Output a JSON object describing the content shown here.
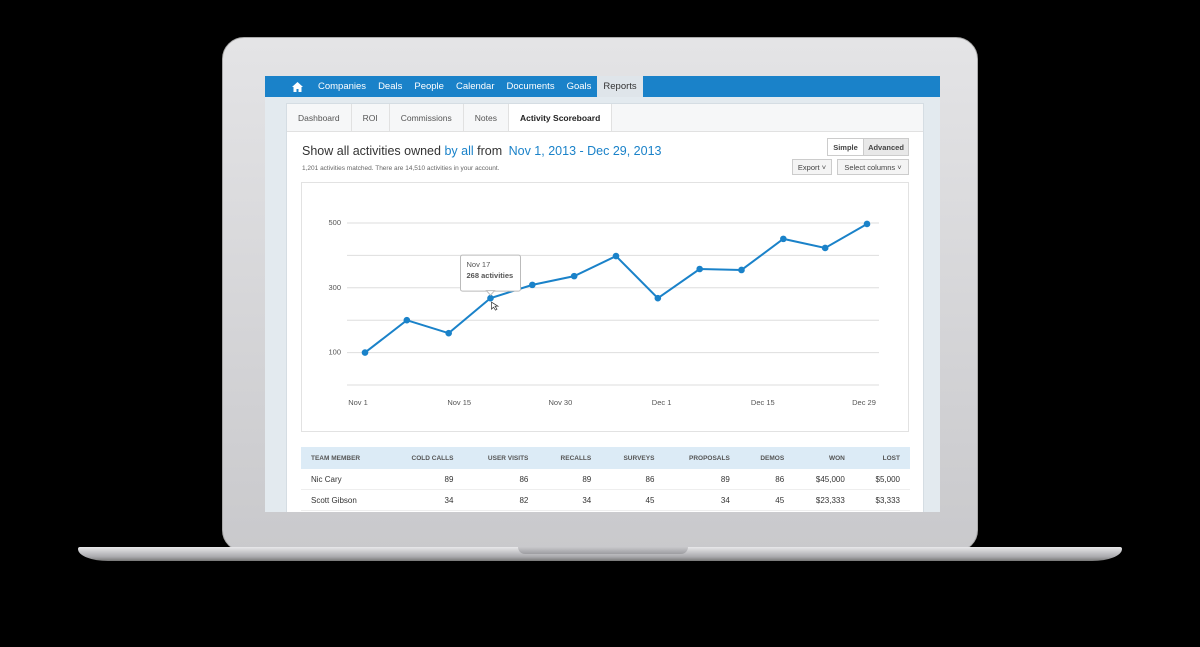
{
  "nav": {
    "items": [
      "Companies",
      "Deals",
      "People",
      "Calendar",
      "Documents",
      "Goals",
      "Reports"
    ],
    "active": "Reports"
  },
  "tabs": {
    "items": [
      "Dashboard",
      "ROI",
      "Commissions",
      "Notes",
      "Activity Scoreboard"
    ],
    "active": "Activity Scoreboard"
  },
  "header": {
    "prefix": "Show all activities owned",
    "owner": "by all",
    "from": "from",
    "range": "Nov 1, 2013 - Dec 29, 2013",
    "summary": "1,201 activities matched. There are 14,510 activities in your account."
  },
  "controls": {
    "simple": "Simple",
    "advanced": "Advanced",
    "export": "Export",
    "columns": "Select columns"
  },
  "chart_data": {
    "type": "line",
    "x_labels": [
      "Nov 1",
      "Nov 15",
      "Nov 30",
      "Dec 1",
      "Dec 15",
      "Dec 29"
    ],
    "series": [
      {
        "name": "Activities",
        "color": "#1a82c9",
        "values": [
          100,
          200,
          160,
          268,
          309,
          336,
          398,
          268,
          358,
          355,
          451,
          423,
          497
        ]
      }
    ],
    "ylim": [
      0,
      500
    ],
    "yticks": [
      100,
      300,
      500
    ],
    "minor_yticks": [
      0,
      200,
      400
    ],
    "grid": true,
    "tooltip": {
      "index": 3,
      "date": "Nov 17",
      "text": "268 activities"
    }
  },
  "table": {
    "columns": [
      "TEAM MEMBER",
      "COLD CALLS",
      "USER VISITS",
      "RECALLS",
      "SURVEYS",
      "PROPOSALS",
      "DEMOS",
      "WON",
      "LOST"
    ],
    "rows": [
      [
        "Nic Cary",
        "89",
        "86",
        "89",
        "86",
        "89",
        "86",
        "$45,000",
        "$5,000"
      ],
      [
        "Scott Gibson",
        "34",
        "82",
        "34",
        "45",
        "34",
        "45",
        "$23,333",
        "$3,333"
      ]
    ]
  }
}
